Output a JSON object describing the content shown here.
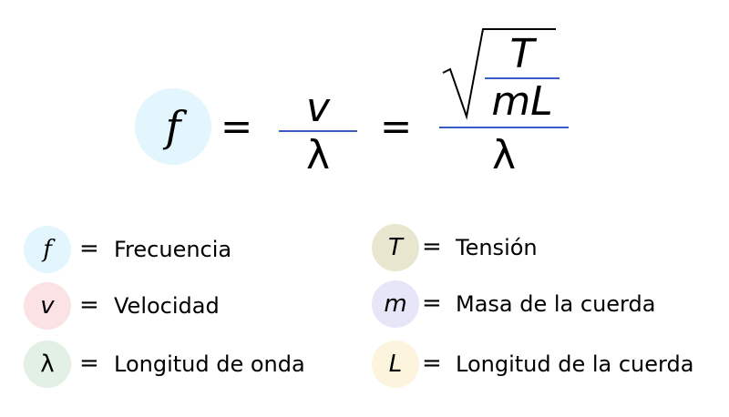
{
  "formula": {
    "lhs": "f",
    "eq1": "=",
    "frac1_num": "v",
    "frac1_den": "λ",
    "eq2": "=",
    "sqrt_num": "T",
    "sqrt_den": "mL",
    "frac2_den": "λ"
  },
  "legend": [
    {
      "symbol": "f",
      "eq": "=",
      "label": "Frecuencia",
      "color": "#e3f6fd"
    },
    {
      "symbol": "v",
      "eq": "=",
      "label": "Velocidad",
      "color": "#fbe3e5"
    },
    {
      "symbol": "λ",
      "eq": "=",
      "label": "Longitud de onda",
      "color": "#e3f0e5"
    },
    {
      "symbol": "T",
      "eq": "=",
      "label": "Tensión",
      "color": "#e9e6cf"
    },
    {
      "symbol": "m",
      "eq": "=",
      "label": "Masa de la cuerda",
      "color": "#e6e6f8"
    },
    {
      "symbol": "L",
      "eq": "=",
      "label": "Longitud de la cuerda",
      "color": "#fdf4dd"
    }
  ],
  "colors": {
    "fraction_rule": "#3b5bc4"
  }
}
